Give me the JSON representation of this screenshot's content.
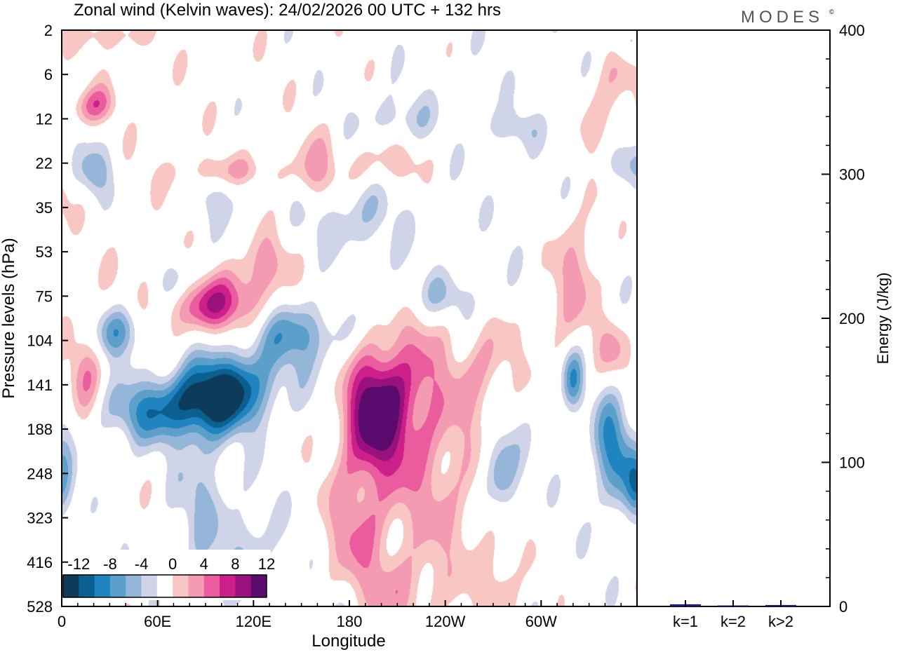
{
  "title": "Zonal wind (Kelvin waves):  24/02/2026  00 UTC  + 132 hrs",
  "logo": "MODES",
  "logo_mark": "©",
  "chart_data": [
    {
      "type": "heatmap",
      "title": "Zonal wind (Kelvin waves):  24/02/2026  00 UTC  + 132 hrs",
      "xlabel": "Longitude",
      "ylabel": "Pressure levels (hPa)",
      "x_ticks": [
        "0",
        "60E",
        "120E",
        "180",
        "120W",
        "60W"
      ],
      "x_tick_values": [
        0,
        60,
        120,
        180,
        240,
        300
      ],
      "xlim": [
        0,
        360
      ],
      "y_ticks": [
        2,
        6,
        12,
        22,
        35,
        53,
        75,
        104,
        141,
        188,
        248,
        323,
        416,
        528
      ],
      "colorbar": {
        "tick_labels": [
          "-12",
          "-8",
          "-4",
          "0",
          "4",
          "8",
          "12"
        ],
        "levels": [
          -14,
          -12,
          -10,
          -8,
          -6,
          -4,
          -2,
          2,
          4,
          6,
          8,
          10,
          12,
          14
        ],
        "colors": [
          "#0d3c5a",
          "#0c5f91",
          "#1f84bf",
          "#5b9fca",
          "#95b6d8",
          "#cfd4e8",
          "#ffffff",
          "#f8c7c4",
          "#f59ab3",
          "#ea5c9e",
          "#cc1f8a",
          "#98117c",
          "#5b0a6e"
        ]
      },
      "anomalies": [
        {
          "lon": 100,
          "level": 8.2,
          "amp": -14,
          "sx": 22,
          "sy": 0.6,
          "tilt": -0.55
        },
        {
          "lon": 150,
          "level": 6.8,
          "amp": -7,
          "sx": 22,
          "sy": 0.55,
          "tilt": -0.5
        },
        {
          "lon": 55,
          "level": 8.6,
          "amp": -7,
          "sx": 24,
          "sy": 0.5,
          "tilt": -0.4
        },
        {
          "lon": 35,
          "level": 6.8,
          "amp": -8,
          "sx": 10,
          "sy": 0.4,
          "tilt": -0.5
        },
        {
          "lon": 70,
          "level": 5.6,
          "amp": -6,
          "sx": 10,
          "sy": 0.4,
          "tilt": -0.6
        },
        {
          "lon": 0,
          "level": 10.3,
          "amp": -7,
          "sx": 6,
          "sy": 0.7,
          "tilt": 0
        },
        {
          "lon": 88,
          "level": 10.5,
          "amp": -4,
          "sx": 12,
          "sy": 1.2,
          "tilt": 0
        },
        {
          "lon": 118,
          "level": 11.7,
          "amp": -4,
          "sx": 12,
          "sy": 0.8,
          "tilt": 0
        },
        {
          "lon": 275,
          "level": 10,
          "amp": -8,
          "sx": 8,
          "sy": 0.7,
          "tilt": 0
        },
        {
          "lon": 345,
          "level": 9.5,
          "amp": -9,
          "sx": 8,
          "sy": 0.9,
          "tilt": 0
        },
        {
          "lon": 360,
          "level": 10.3,
          "amp": -8,
          "sx": 5,
          "sy": 0.5,
          "tilt": 0
        },
        {
          "lon": 320,
          "level": 7.9,
          "amp": -7,
          "sx": 5,
          "sy": 0.5,
          "tilt": 0
        },
        {
          "lon": 240,
          "level": 6,
          "amp": -4,
          "sx": 20,
          "sy": 0.4,
          "tilt": 0
        },
        {
          "lon": 180,
          "level": 4.2,
          "amp": -4,
          "sx": 20,
          "sy": 0.6,
          "tilt": -0.4
        },
        {
          "lon": 105,
          "level": 3.5,
          "amp": -4,
          "sx": 15,
          "sy": 0.5,
          "tilt": -0.5
        },
        {
          "lon": 350,
          "level": 3,
          "amp": -5,
          "sx": 12,
          "sy": 0.4,
          "tilt": -0.4
        },
        {
          "lon": 355,
          "level": 0.3,
          "amp": -5,
          "sx": 8,
          "sy": 0.3,
          "tilt": 0
        },
        {
          "lon": 20,
          "level": 3.2,
          "amp": -5,
          "sx": 8,
          "sy": 0.4,
          "tilt": 0
        },
        {
          "lon": 210,
          "level": 2,
          "amp": -4,
          "sx": 15,
          "sy": 0.4,
          "tilt": 0
        },
        {
          "lon": 280,
          "level": 2.2,
          "amp": -4,
          "sx": 12,
          "sy": 0.3,
          "tilt": 0
        },
        {
          "lon": 170,
          "level": 13.5,
          "amp": -3,
          "sx": 8,
          "sy": 0.5,
          "tilt": 0
        },
        {
          "lon": 200,
          "level": 5.5,
          "amp": -3,
          "sx": 10,
          "sy": 0.7,
          "tilt": 0
        },
        {
          "lon": 195,
          "level": 8.6,
          "amp": 11,
          "sx": 13,
          "sy": 0.9,
          "tilt": -0.2
        },
        {
          "lon": 215,
          "level": 8.3,
          "amp": 6,
          "sx": 20,
          "sy": 1.4,
          "tilt": -0.2
        },
        {
          "lon": 185,
          "level": 11.3,
          "amp": 5,
          "sx": 15,
          "sy": 1.2,
          "tilt": 0
        },
        {
          "lon": 240,
          "level": 10.5,
          "amp": 3.5,
          "sx": 25,
          "sy": 1.6,
          "tilt": 0
        },
        {
          "lon": 95,
          "level": 6.2,
          "amp": 9,
          "sx": 22,
          "sy": 0.45,
          "tilt": -0.5
        },
        {
          "lon": 125,
          "level": 5.3,
          "amp": 5,
          "sx": 12,
          "sy": 0.5,
          "tilt": -0.6
        },
        {
          "lon": 105,
          "level": 3.2,
          "amp": 6,
          "sx": 25,
          "sy": 0.3,
          "tilt": -0.6
        },
        {
          "lon": 20,
          "level": 1.7,
          "amp": 6,
          "sx": 10,
          "sy": 0.3,
          "tilt": -0.6
        },
        {
          "lon": 30,
          "level": 0.1,
          "amp": 4,
          "sx": 15,
          "sy": 0.3,
          "tilt": 0
        },
        {
          "lon": 15,
          "level": 7.6,
          "amp": 5,
          "sx": 8,
          "sy": 1,
          "tilt": 0
        },
        {
          "lon": 160,
          "level": 3.2,
          "amp": 4,
          "sx": 10,
          "sy": 0.6,
          "tilt": 0
        },
        {
          "lon": 200,
          "level": 3,
          "amp": 4,
          "sx": 15,
          "sy": 0.4,
          "tilt": -0.6
        },
        {
          "lon": 320,
          "level": 5.7,
          "amp": 4,
          "sx": 12,
          "sy": 1.2,
          "tilt": -0.5
        },
        {
          "lon": 345,
          "level": 1.5,
          "amp": 4,
          "sx": 10,
          "sy": 1.2,
          "tilt": -0.5
        },
        {
          "lon": 345,
          "level": 7.2,
          "amp": 4,
          "sx": 8,
          "sy": 0.5,
          "tilt": 0
        },
        {
          "lon": 265,
          "level": 7.6,
          "amp": 4,
          "sx": 12,
          "sy": 0.7,
          "tilt": -0.3
        },
        {
          "lon": 275,
          "level": 12.5,
          "amp": 3.5,
          "sx": 8,
          "sy": 0.8,
          "tilt": 0
        },
        {
          "lon": 215,
          "level": 12.7,
          "amp": 3.5,
          "sx": 15,
          "sy": 0.6,
          "tilt": 0
        },
        {
          "lon": 180,
          "level": 6,
          "amp": 3,
          "sx": 15,
          "sy": 0.6,
          "tilt": -0.5
        },
        {
          "lon": 60,
          "level": 5.5,
          "amp": 3,
          "sx": 15,
          "sy": 0.4,
          "tilt": -0.5
        },
        {
          "lon": 0,
          "level": 3.8,
          "amp": 3,
          "sx": 4,
          "sy": 0.4,
          "tilt": 0
        }
      ]
    },
    {
      "type": "bar",
      "categories": [
        "k=1",
        "k=2",
        "k>2"
      ],
      "values": [
        1.5,
        0.7,
        1.0
      ],
      "ylabel": "Energy (J/kg)",
      "ylim": [
        0,
        400
      ],
      "y_ticks": [
        0,
        100,
        200,
        300,
        400
      ],
      "bar_color": "#1b1f7a"
    }
  ]
}
